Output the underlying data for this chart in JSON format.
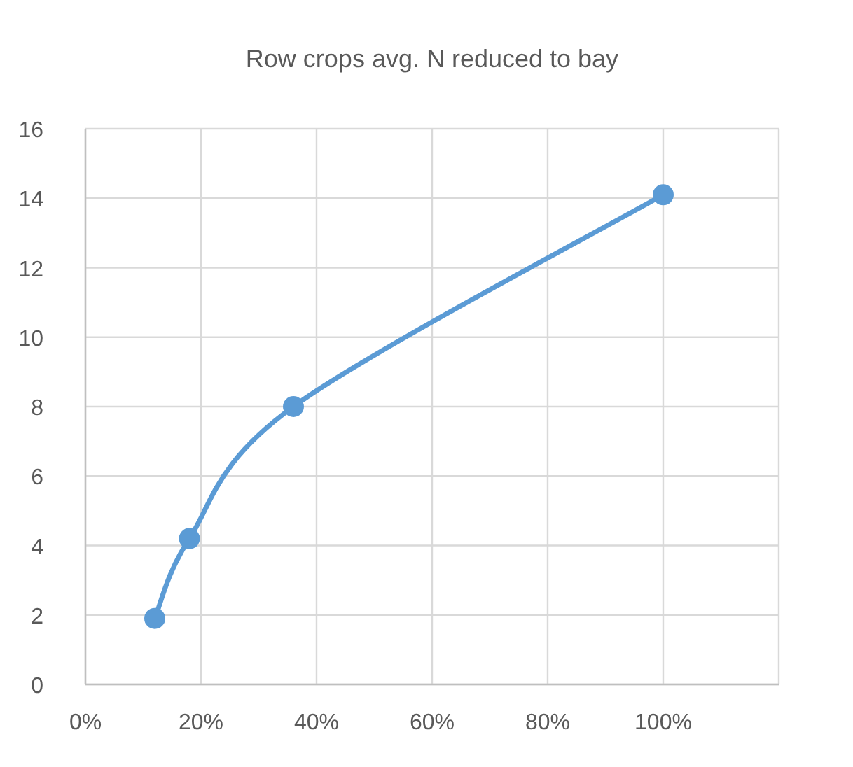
{
  "chart_data": {
    "type": "line",
    "title": "Row crops avg. N reduced to bay",
    "x": [
      0.12,
      0.18,
      0.36,
      1.0
    ],
    "series": [
      {
        "color": "#5b9bd5",
        "values": [
          1.9,
          4.2,
          8.0,
          14.1
        ]
      }
    ],
    "xlim": [
      0,
      1.2
    ],
    "xticks": [
      {
        "value": 0,
        "label": "0%"
      },
      {
        "value": 0.2,
        "label": "20%"
      },
      {
        "value": 0.4,
        "label": "40%"
      },
      {
        "value": 0.6,
        "label": "60%"
      },
      {
        "value": 0.8,
        "label": "80%"
      },
      {
        "value": 1.0,
        "label": "100%"
      },
      {
        "value": 1.2,
        "label": null
      }
    ],
    "ylim": [
      0,
      16
    ],
    "yticks": [
      0,
      2,
      4,
      6,
      8,
      10,
      12,
      14,
      16
    ],
    "grid": true,
    "marker": "circle",
    "line_style": "solid"
  }
}
